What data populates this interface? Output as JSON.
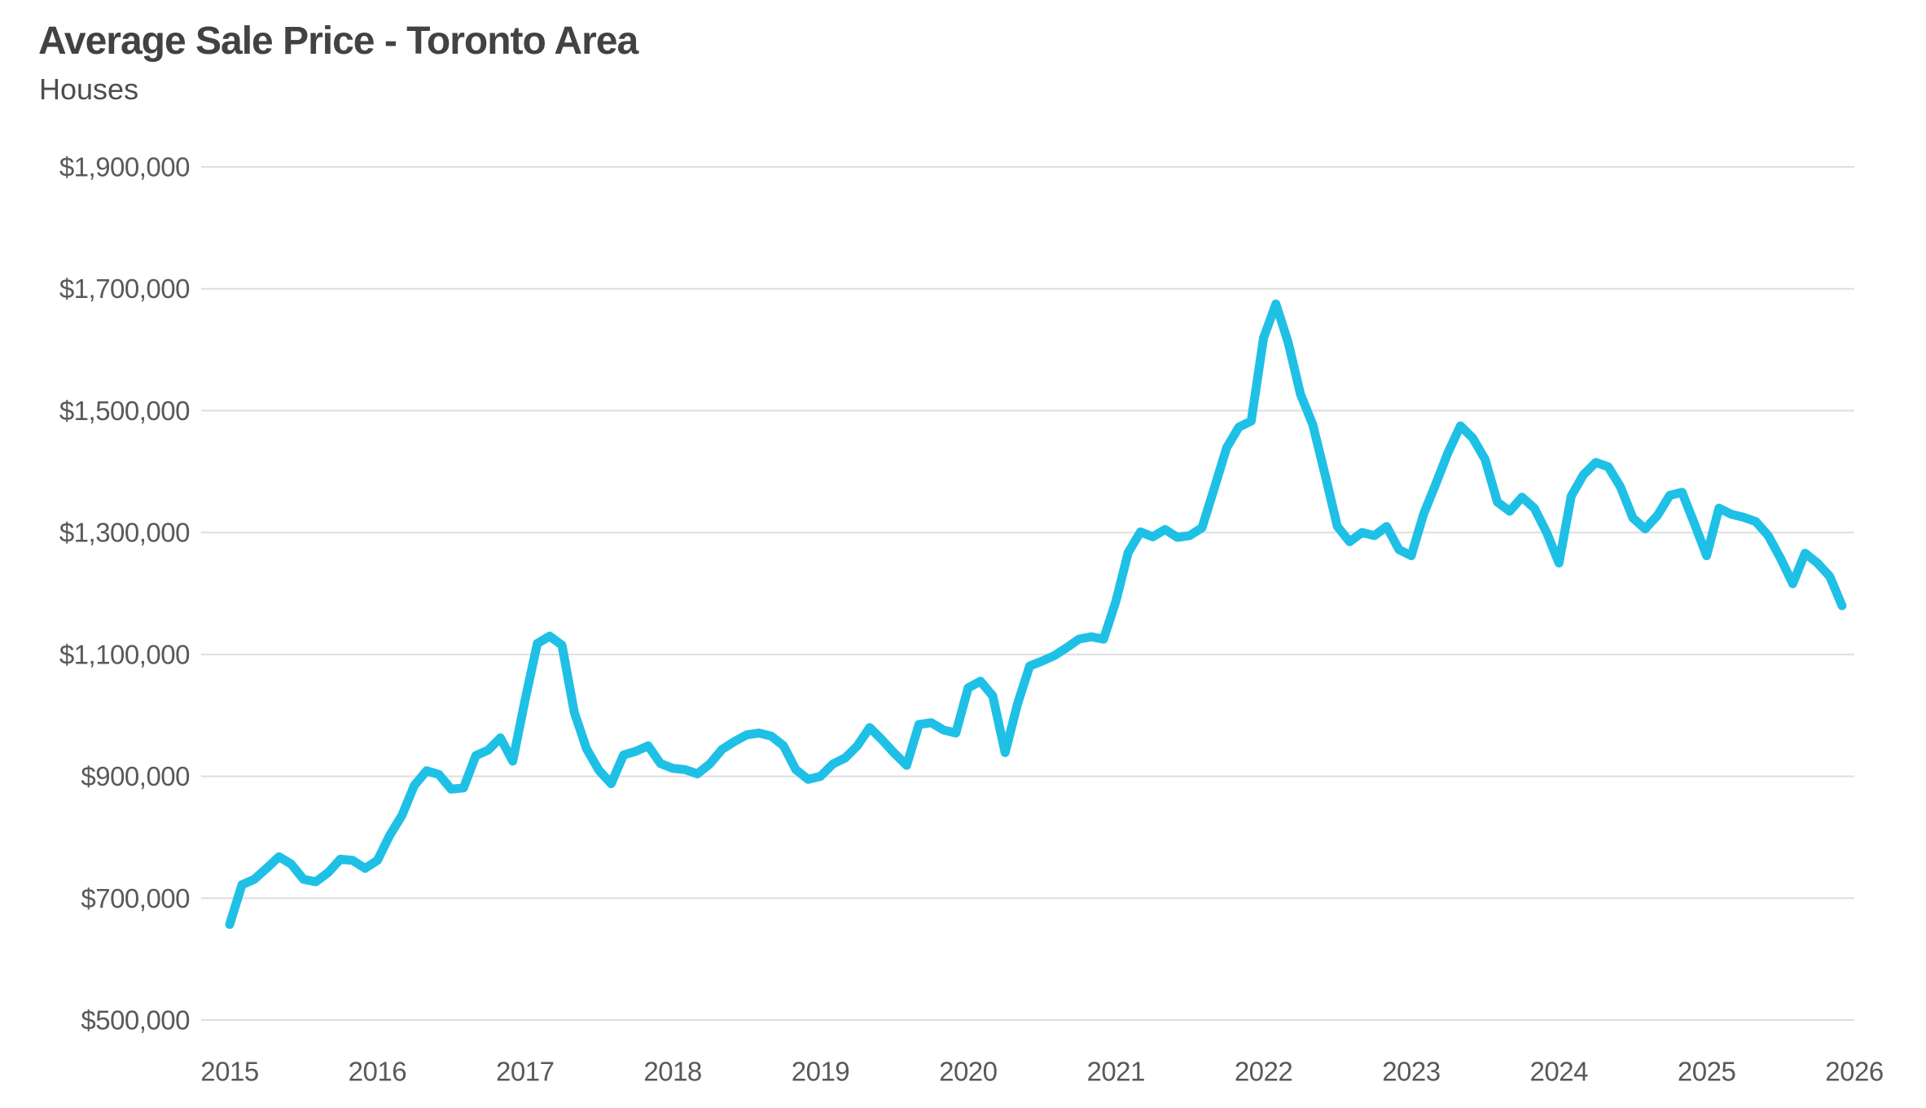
{
  "page": {
    "background_color": "#ffffff"
  },
  "header": {
    "title": "Average Sale Price - Toronto Area",
    "subtitle": "Houses"
  },
  "chart_data": {
    "type": "line",
    "title": "Average Sale Price - Toronto Area",
    "subtitle": "Houses",
    "xlabel": "",
    "ylabel": "",
    "grid": "horizontal",
    "grid_color": "#dedede",
    "tick_label_color": "#595959",
    "ylim": [
      500000,
      1900000
    ],
    "yticks": [
      {
        "value": 1900000,
        "label": "$1,900,000"
      },
      {
        "value": 1700000,
        "label": "$1,700,000"
      },
      {
        "value": 1500000,
        "label": "$1,500,000"
      },
      {
        "value": 1300000,
        "label": "$1,300,000"
      },
      {
        "value": 1100000,
        "label": "$1,100,000"
      },
      {
        "value": 900000,
        "label": "$900,000"
      },
      {
        "value": 700000,
        "label": "$700,000"
      },
      {
        "value": 500000,
        "label": "$500,000"
      }
    ],
    "xticks": [
      "2015",
      "2016",
      "2017",
      "2018",
      "2019",
      "2020",
      "2021",
      "2022",
      "2023",
      "2024",
      "2025",
      "2026"
    ],
    "series": [
      {
        "name": "average-sale-price",
        "color": "#1fc0e6",
        "stroke_width": 11,
        "frequency": "monthly",
        "start": "2015-01",
        "end": "2025-12",
        "values": [
          657000,
          722000,
          731000,
          749000,
          768000,
          756000,
          731000,
          727000,
          742000,
          764000,
          762000,
          749000,
          762000,
          803000,
          836000,
          885000,
          909000,
          903000,
          879000,
          881000,
          934000,
          943000,
          963000,
          925000,
          1025000,
          1118000,
          1130000,
          1115000,
          1005000,
          945000,
          910000,
          888000,
          935000,
          941000,
          950000,
          921000,
          913000,
          911000,
          904000,
          920000,
          944000,
          957000,
          968000,
          971000,
          966000,
          950000,
          911000,
          895000,
          900000,
          920000,
          930000,
          950000,
          980000,
          960000,
          938000,
          918000,
          985000,
          988000,
          976000,
          971000,
          1045000,
          1056000,
          1032000,
          939000,
          1018000,
          1081000,
          1089000,
          1098000,
          1111000,
          1125000,
          1129000,
          1125000,
          1187000,
          1267000,
          1301000,
          1293000,
          1305000,
          1292000,
          1295000,
          1308000,
          1373000,
          1439000,
          1473000,
          1483000,
          1619000,
          1675000,
          1612000,
          1527000,
          1477000,
          1395000,
          1310000,
          1285000,
          1300000,
          1295000,
          1310000,
          1272000,
          1262000,
          1330000,
          1380000,
          1432000,
          1475000,
          1455000,
          1420000,
          1350000,
          1335000,
          1358000,
          1340000,
          1300000,
          1250000,
          1360000,
          1395000,
          1415000,
          1408000,
          1375000,
          1324000,
          1306000,
          1328000,
          1361000,
          1366000,
          1315000,
          1262000,
          1340000,
          1330000,
          1325000,
          1318000,
          1295000,
          1258000,
          1216000,
          1266000,
          1250000,
          1228000,
          1180000
        ]
      }
    ]
  }
}
